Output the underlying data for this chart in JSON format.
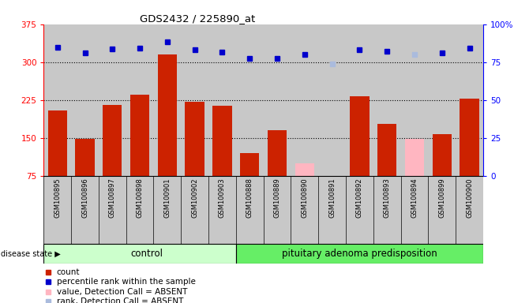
{
  "title": "GDS2432 / 225890_at",
  "samples": [
    "GSM100895",
    "GSM100896",
    "GSM100897",
    "GSM100898",
    "GSM100901",
    "GSM100902",
    "GSM100903",
    "GSM100888",
    "GSM100889",
    "GSM100890",
    "GSM100891",
    "GSM100892",
    "GSM100893",
    "GSM100894",
    "GSM100899",
    "GSM100900"
  ],
  "count_values": [
    205,
    148,
    215,
    235,
    315,
    222,
    214,
    120,
    165,
    null,
    null,
    232,
    178,
    null,
    157,
    228
  ],
  "absent_value_values": [
    null,
    null,
    null,
    null,
    null,
    null,
    null,
    null,
    null,
    100,
    null,
    null,
    null,
    148,
    null,
    null
  ],
  "percentile_values": [
    330,
    318,
    326,
    327,
    340,
    325,
    320,
    308,
    308,
    315,
    null,
    325,
    322,
    null,
    318,
    327
  ],
  "absent_rank_values": [
    null,
    null,
    null,
    null,
    null,
    null,
    null,
    null,
    null,
    null,
    297,
    null,
    null,
    315,
    null,
    null
  ],
  "ylim_left": [
    75,
    375
  ],
  "yticks_left": [
    75,
    150,
    225,
    300,
    375
  ],
  "yticks_right_labels": [
    "0",
    "25",
    "50",
    "75",
    "100%"
  ],
  "dotted_lines": [
    150,
    225,
    300
  ],
  "control_count": 7,
  "total_count": 16,
  "bar_color_red": "#CC2200",
  "bar_color_pink": "#FFB6C1",
  "dot_color_blue": "#0000CC",
  "dot_color_lightblue": "#AABBDD",
  "group_color_light": "#CCFFCC",
  "group_color_dark": "#66EE66",
  "bg_color": "#C8C8C8",
  "fig_width": 6.51,
  "fig_height": 3.84
}
